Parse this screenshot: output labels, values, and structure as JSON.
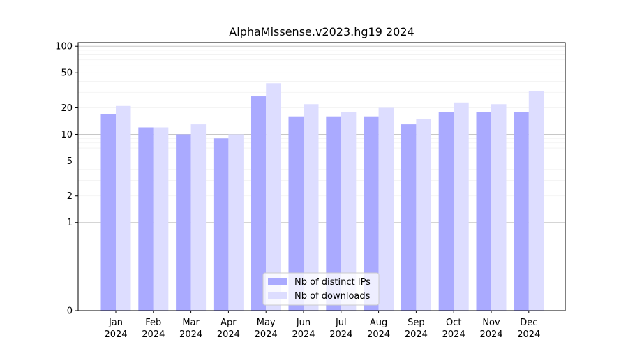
{
  "chart_data": {
    "type": "bar",
    "title": "AlphaMissense.v2023.hg19 2024",
    "xlabel": "",
    "ylabel": "",
    "y_scale": "symlog",
    "ylim": [
      0,
      110
    ],
    "y_ticks": [
      0,
      1,
      2,
      5,
      10,
      20,
      50,
      100
    ],
    "categories": [
      [
        "Jan",
        "2024"
      ],
      [
        "Feb",
        "2024"
      ],
      [
        "Mar",
        "2024"
      ],
      [
        "Apr",
        "2024"
      ],
      [
        "May",
        "2024"
      ],
      [
        "Jun",
        "2024"
      ],
      [
        "Jul",
        "2024"
      ],
      [
        "Aug",
        "2024"
      ],
      [
        "Sep",
        "2024"
      ],
      [
        "Oct",
        "2024"
      ],
      [
        "Nov",
        "2024"
      ],
      [
        "Dec",
        "2024"
      ]
    ],
    "series": [
      {
        "name": "Nb of distinct IPs",
        "color": "#aaaaff",
        "values": [
          17,
          12,
          10,
          9,
          27,
          16,
          16,
          16,
          13,
          18,
          18,
          18
        ]
      },
      {
        "name": "Nb of downloads",
        "color": "#ddddff",
        "values": [
          21,
          12,
          13,
          10,
          38,
          22,
          18,
          20,
          15,
          23,
          22,
          31
        ]
      }
    ],
    "grid": true,
    "legend_position": "bottom-center"
  }
}
